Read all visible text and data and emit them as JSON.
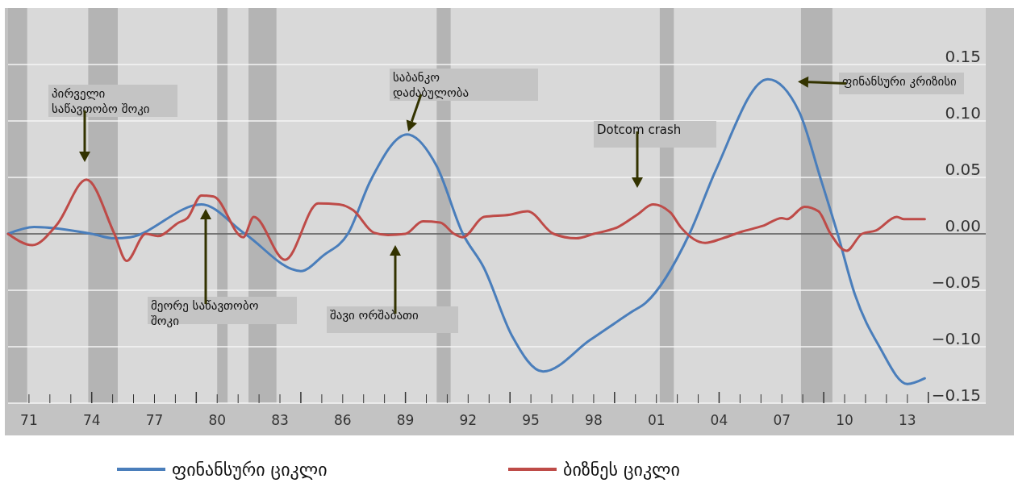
{
  "chart_data": {
    "type": "line",
    "xlim": [
      "1970-01",
      "2016-10"
    ],
    "xticks": [
      {
        "value": "1971",
        "label": "71"
      },
      {
        "value": "1972",
        "label": null
      },
      {
        "value": "1973",
        "label": null
      },
      {
        "value": "1974",
        "label": "74"
      },
      {
        "value": "1975",
        "label": null
      },
      {
        "value": "1976",
        "label": null
      },
      {
        "value": "1977",
        "label": "77"
      },
      {
        "value": "1978",
        "label": null
      },
      {
        "value": "1979",
        "label": null
      },
      {
        "value": "1980",
        "label": "80"
      },
      {
        "value": "1981",
        "label": null
      },
      {
        "value": "1982",
        "label": null
      },
      {
        "value": "1983",
        "label": "83"
      },
      {
        "value": "1984",
        "label": null
      },
      {
        "value": "1985",
        "label": null
      },
      {
        "value": "1986",
        "label": "86"
      },
      {
        "value": "1987",
        "label": null
      },
      {
        "value": "1988",
        "label": null
      },
      {
        "value": "1989",
        "label": "89"
      },
      {
        "value": "1990",
        "label": null
      },
      {
        "value": "1991",
        "label": null
      },
      {
        "value": "1992",
        "label": "92"
      },
      {
        "value": "1993",
        "label": null
      },
      {
        "value": "1994",
        "label": null
      },
      {
        "value": "1995",
        "label": "95"
      },
      {
        "value": "1996",
        "label": null
      },
      {
        "value": "1997",
        "label": null
      },
      {
        "value": "1998",
        "label": "98"
      },
      {
        "value": "1999",
        "label": null
      },
      {
        "value": "2000",
        "label": null
      },
      {
        "value": "2001",
        "label": "01"
      },
      {
        "value": "2002",
        "label": null
      },
      {
        "value": "2003",
        "label": null
      },
      {
        "value": "2004",
        "label": "04"
      },
      {
        "value": "2005",
        "label": null
      },
      {
        "value": "2006",
        "label": null
      },
      {
        "value": "2007",
        "label": "07"
      },
      {
        "value": "2008",
        "label": null
      },
      {
        "value": "2009",
        "label": null
      },
      {
        "value": "2010",
        "label": "10"
      },
      {
        "value": "2011",
        "label": null
      },
      {
        "value": "2012",
        "label": null
      },
      {
        "value": "2013",
        "label": "13"
      },
      {
        "value": "2014",
        "label": null
      }
    ],
    "ylim": [
      -0.15,
      0.2
    ],
    "yticks": [
      {
        "value": -0.15,
        "label": "−0.15"
      },
      {
        "value": -0.1,
        "label": "−0.10"
      },
      {
        "value": -0.05,
        "label": "−0.05"
      },
      {
        "value": 0,
        "label": "0.00"
      },
      {
        "value": 0.05,
        "label": "0.05"
      },
      {
        "value": 0.1,
        "label": "0.10"
      },
      {
        "value": 0.15,
        "label": "0.15"
      }
    ],
    "grid": "y",
    "legend": "bottom",
    "ref_lines": [
      {
        "axis": "y",
        "value": 0,
        "color": "#000000"
      }
    ],
    "bands": [
      {
        "axis": "x",
        "from": "1970-01",
        "to": "1970-12",
        "color": "#b4b4b4"
      },
      {
        "axis": "x",
        "from": "1973-11",
        "to": "1975-04",
        "color": "#b4b4b4"
      },
      {
        "axis": "x",
        "from": "1980-01",
        "to": "1980-07",
        "color": "#b4b4b4"
      },
      {
        "axis": "x",
        "from": "1981-07",
        "to": "1982-11",
        "color": "#b4b4b4"
      },
      {
        "axis": "x",
        "from": "1990-07",
        "to": "1991-03",
        "color": "#b4b4b4"
      },
      {
        "axis": "x",
        "from": "2001-03",
        "to": "2001-11",
        "color": "#b4b4b4"
      },
      {
        "axis": "x",
        "from": "2007-12",
        "to": "2009-06",
        "color": "#b4b4b4"
      }
    ],
    "annotations": [
      "პირველი\nსაწავთობო შოკი",
      "მეორე საწავთობო\nშოკი",
      {
        "text": "საბანკო\nდაძაბულობა",
        "x": "1989-02",
        "y": 0.088
      },
      "შავი ორშაბათი",
      "Dotcom crash",
      "ფინანსური კრიზისი"
    ],
    "series": [
      {
        "name": "ფინანსური ციკლი",
        "color": "#4a7ebb",
        "x": [
          "1970-01",
          "1971-04",
          "1974-01",
          "1975-02",
          "1975-11",
          "1979-04",
          "1981-05",
          "1984-01",
          "1985-02",
          "1986-04",
          "1987-05",
          "1989-02",
          "1990-07",
          "1991-10",
          "1992-10",
          "1994-02",
          "1995-08",
          "1997-11",
          "1999-11",
          "2000-07",
          "2002-08",
          "2003-11",
          "2006-05",
          "2007-11",
          "2008-11",
          "2009-09",
          "2010-07",
          "2011-09",
          "2013-01",
          "2013-11"
        ],
        "values": [
          0,
          0.006,
          0,
          -0.004,
          -0.003,
          0.026,
          0,
          -0.033,
          -0.019,
          0,
          0.047,
          0.088,
          0.06,
          0,
          -0.03,
          -0.09,
          -0.122,
          -0.094,
          -0.069,
          -0.061,
          0,
          0.056,
          0.137,
          0.108,
          0.05,
          0,
          -0.054,
          -0.1,
          -0.133,
          -0.128
        ]
      },
      {
        "name": "ბიზნეს ციკლი",
        "color": "#be4b48",
        "x": [
          "1970-01",
          "1971-03",
          "1972-05",
          "1973-10",
          "1975-02",
          "1975-09",
          "1976-08",
          "1977-03",
          "1978-03",
          "1978-08",
          "1979-04",
          "1979-11",
          "1981-04",
          "1981-10",
          "1983-04",
          "1984-11",
          "1985-11",
          "1986-07",
          "1987-07",
          "1988-03",
          "1989-01",
          "1989-11",
          "1990-09",
          "1991-05",
          "1991-10",
          "1992-10",
          "1994-01",
          "1994-11",
          "1996-02",
          "1997-03",
          "1998-01",
          "1999-03",
          "2000-02",
          "2000-11",
          "2001-09",
          "2002-03",
          "2003-05",
          "2004-03",
          "2005-02",
          "2006-02",
          "2007-01",
          "2007-04",
          "2008-02",
          "2008-10",
          "2009-05",
          "2010-02",
          "2010-11",
          "2011-07",
          "2012-07",
          "2012-11",
          "2013-11"
        ],
        "values": [
          0,
          -0.01,
          0.008,
          0.048,
          0,
          -0.024,
          0,
          -0.002,
          0.01,
          0.014,
          0.034,
          0.033,
          -0.003,
          0.015,
          -0.023,
          0.027,
          0.026,
          0.021,
          0.001,
          -0.001,
          0,
          0.011,
          0.01,
          0,
          -0.003,
          0.015,
          0.017,
          0.02,
          0,
          -0.004,
          0,
          0.006,
          0.017,
          0.026,
          0.019,
          0.006,
          -0.008,
          -0.004,
          0.002,
          0.007,
          0.014,
          0.013,
          0.024,
          0.02,
          0,
          -0.015,
          0,
          0.003,
          0.015,
          0.013,
          0.013
        ]
      }
    ]
  }
}
